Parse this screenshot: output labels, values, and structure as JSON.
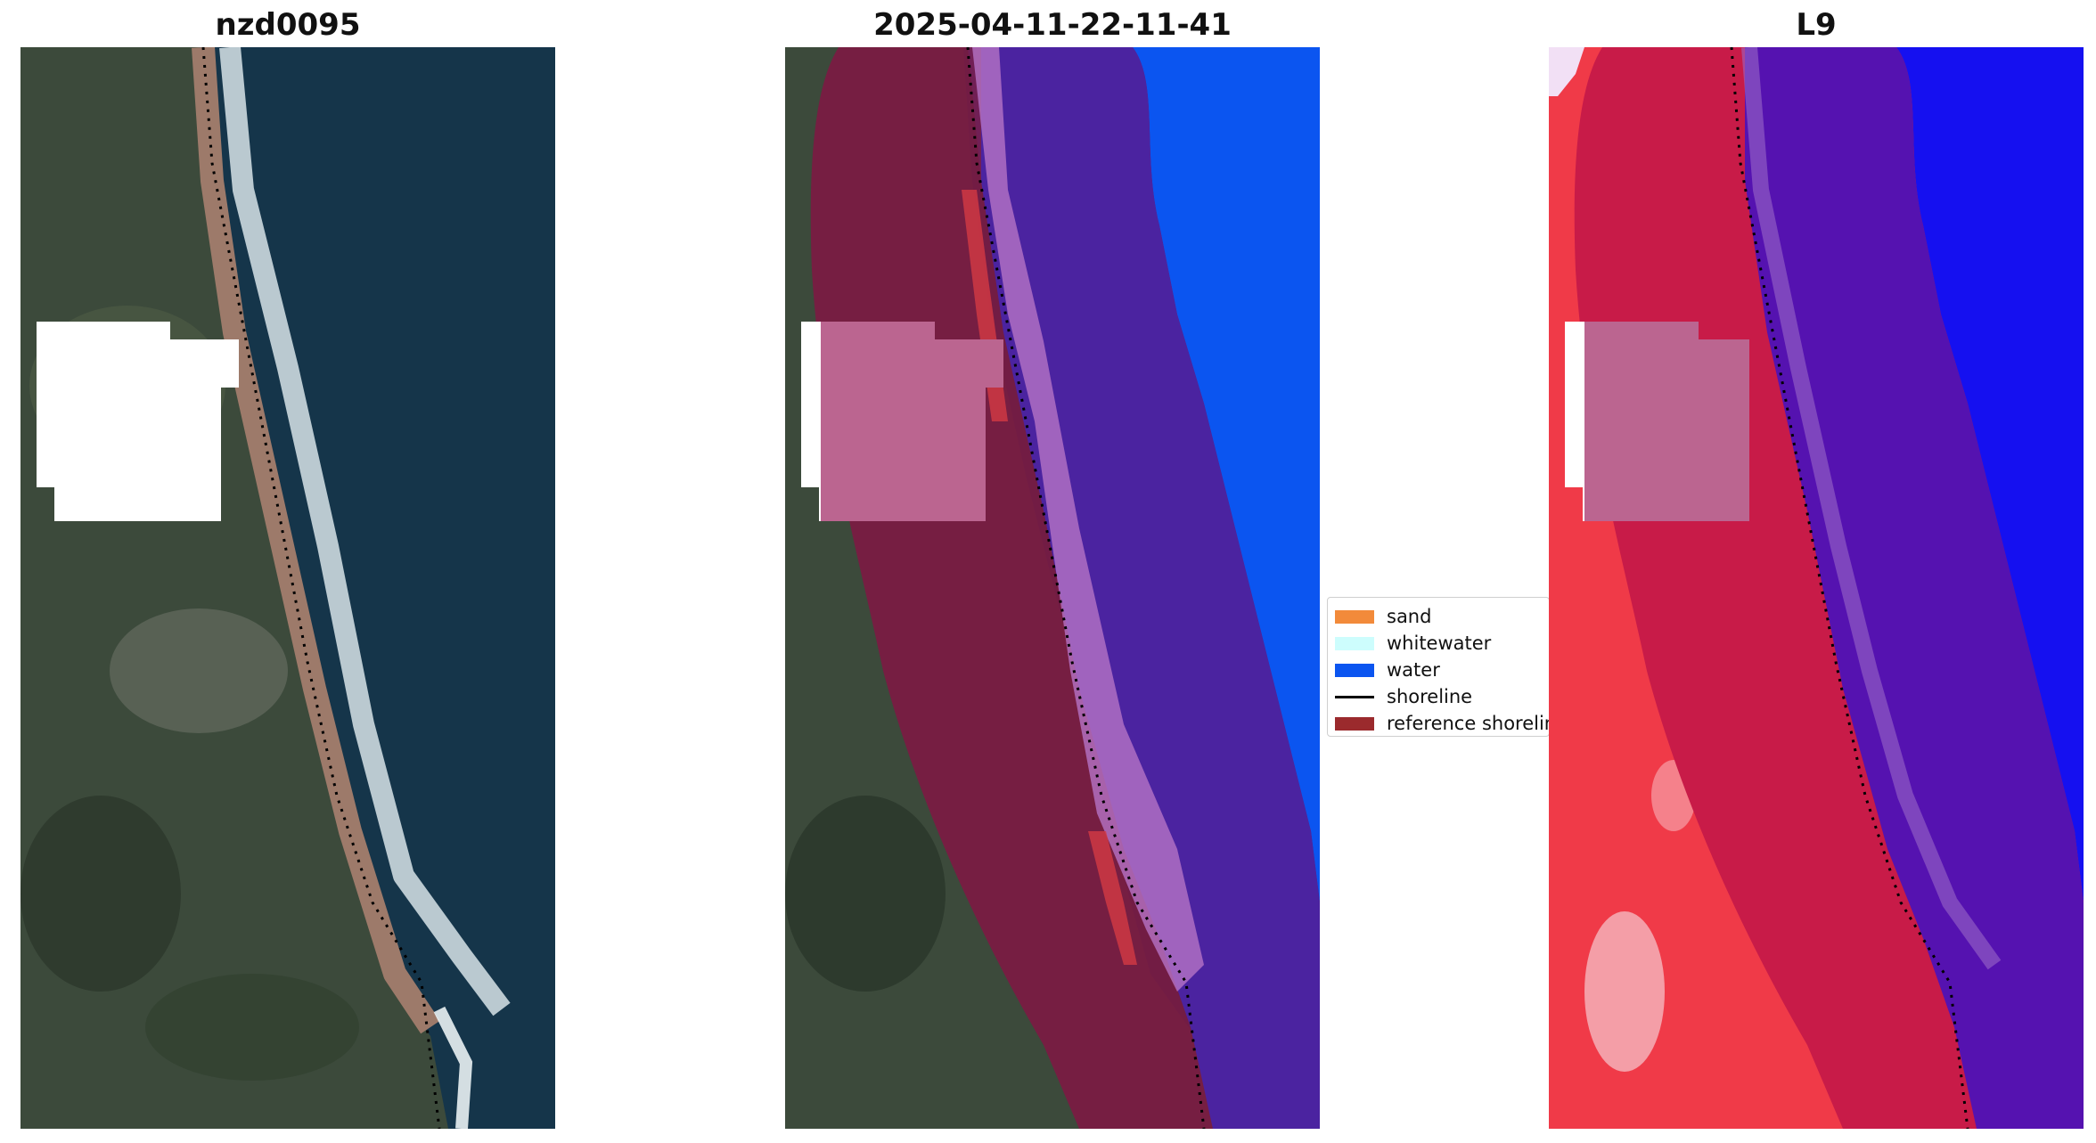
{
  "panels": [
    {
      "title": "nzd0095"
    },
    {
      "title": "2025-04-11-22-11-41"
    },
    {
      "title": "L9"
    }
  ],
  "legend": {
    "items": [
      {
        "label": "sand",
        "color": "#f28a3a",
        "kind": "patch"
      },
      {
        "label": "whitewater",
        "color": "#cdfdfd",
        "kind": "patch"
      },
      {
        "label": "water",
        "color": "#0b55f0",
        "kind": "patch"
      },
      {
        "label": "shoreline",
        "color": "#000000",
        "kind": "line"
      },
      {
        "label": "reference shoreline",
        "color": "#9b2a2d",
        "kind": "patch"
      }
    ]
  },
  "colors": {
    "ocean": "#15354a",
    "land": "#3b4a3a",
    "cloud_mask": "#ffffff",
    "land_class_overlay": "#7c1a44",
    "water_class": "#0b55f0",
    "buffer_water": "#4b23a0",
    "buffer_mask_pink": "#bb6590",
    "l9_land": "#f03a48",
    "l9_buffer": "#c81b48",
    "l9_water": "#1510f0",
    "l9_water_buffer": "#5512b0"
  }
}
